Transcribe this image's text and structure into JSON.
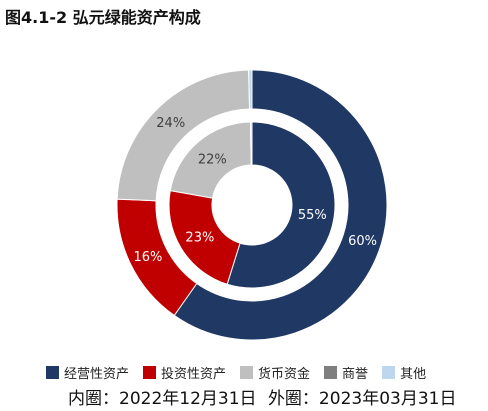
{
  "title": "图4.1-2 弘元绿能资产构成",
  "footnote": {
    "inner": "内圈：2022年12月31日",
    "outer": "外圈：2023年03月31日"
  },
  "chart_data": {
    "type": "pie",
    "categories": [
      "经营性资产",
      "投资性资产",
      "货币资金",
      "商誉",
      "其他"
    ],
    "colors": [
      "#1F3864",
      "#C00000",
      "#BFBFBF",
      "#7F7F7F",
      "#BDD7EE"
    ],
    "legend_position": "bottom",
    "series": [
      {
        "ring": "inner",
        "values": [
          55,
          23,
          22,
          0,
          0.3
        ],
        "labels": [
          "55%",
          "23%",
          "22%",
          "",
          ""
        ]
      },
      {
        "ring": "outer",
        "values": [
          60,
          16,
          24,
          0,
          0.4
        ],
        "labels": [
          "60%",
          "16%",
          "24%",
          "",
          ""
        ]
      }
    ]
  }
}
